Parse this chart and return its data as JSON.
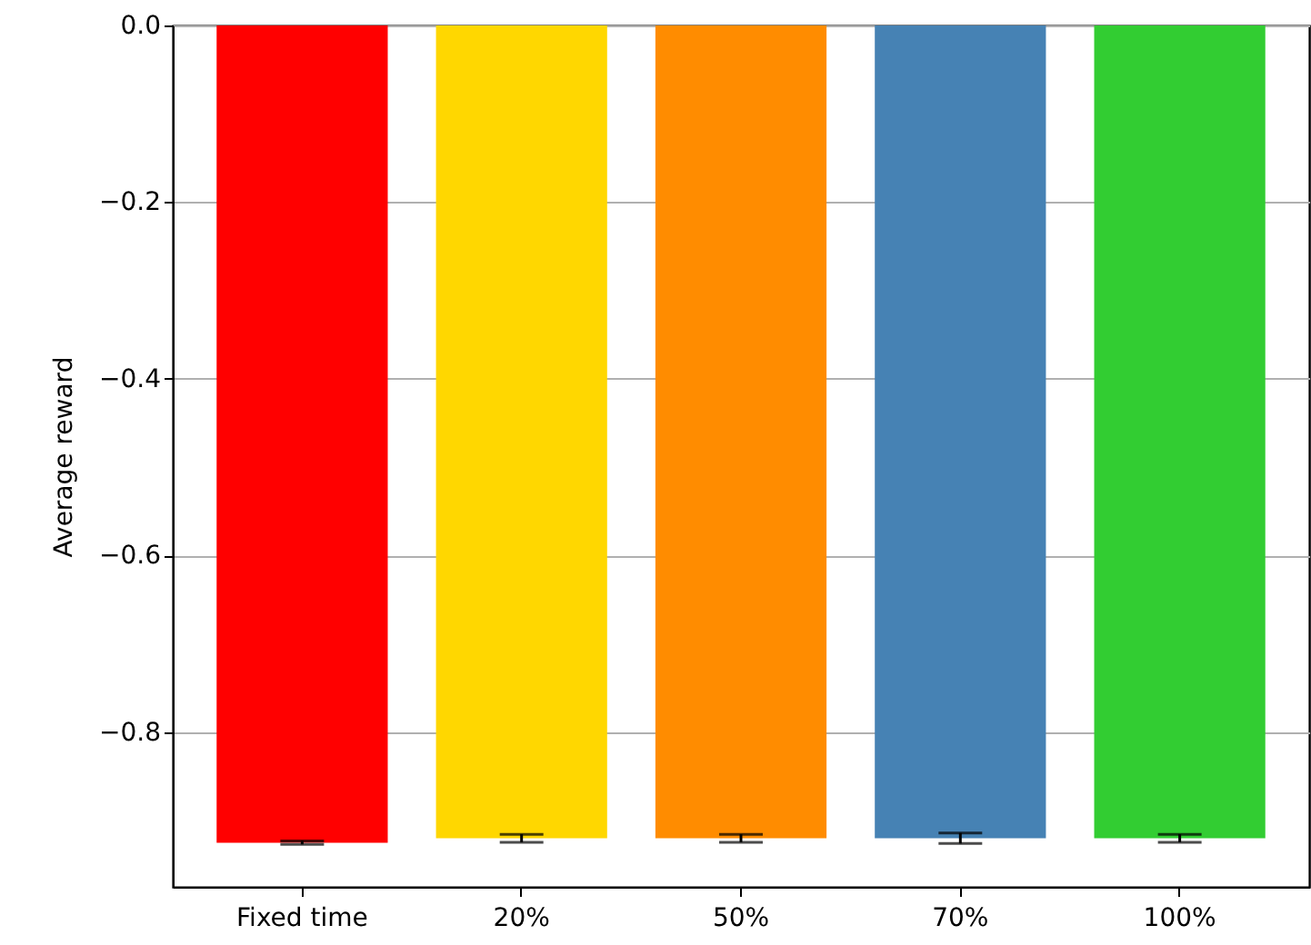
{
  "chart_data": {
    "type": "bar",
    "ylabel": "Average reward",
    "categories": [
      "Fixed time",
      "20%",
      "50%",
      "70%",
      "100%"
    ],
    "values": [
      -0.925,
      -0.92,
      -0.92,
      -0.92,
      -0.92
    ],
    "errors": [
      0.002,
      0.0045,
      0.0045,
      0.006,
      0.0045
    ],
    "colors": [
      "#ff0000",
      "#ffd700",
      "#ff8c00",
      "#4682b4",
      "#32cd32"
    ],
    "ylim": [
      -0.975,
      0
    ],
    "yticks": [
      {
        "value": -0.8,
        "label": "−0.8"
      },
      {
        "value": -0.6,
        "label": "−0.6"
      },
      {
        "value": -0.4,
        "label": "−0.4"
      },
      {
        "value": -0.2,
        "label": "−0.2"
      },
      {
        "value": 0,
        "label": "0.0"
      }
    ],
    "grid": "y"
  }
}
